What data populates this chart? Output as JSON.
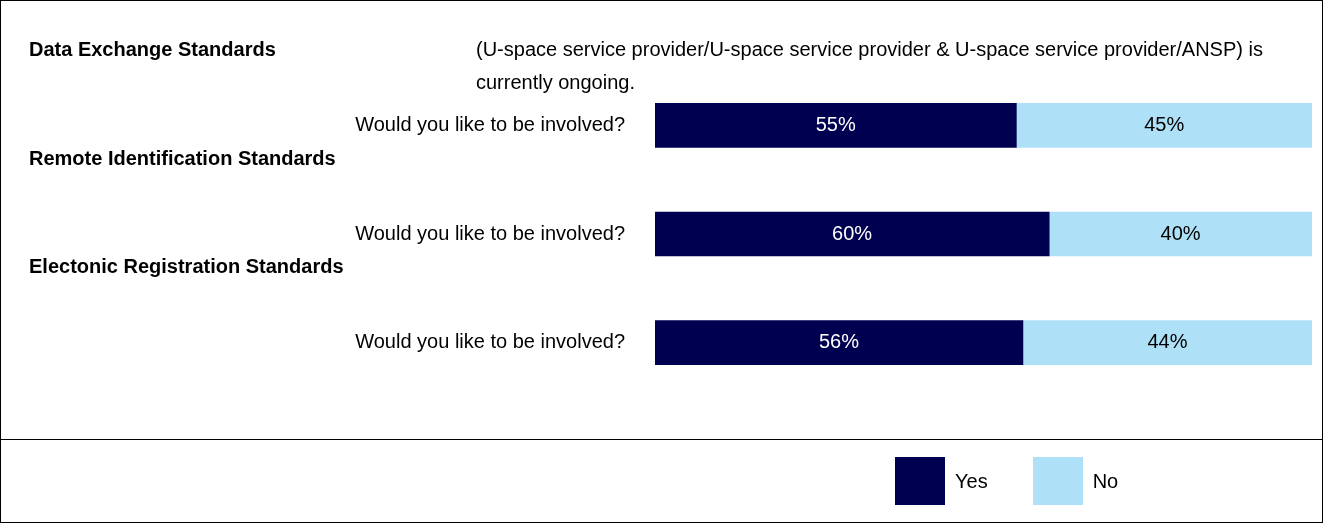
{
  "chart_data": {
    "type": "bar",
    "orientation": "horizontal",
    "stacked": true,
    "categories": [
      "Would you like to be involved?",
      "Would you like to be involved?",
      "Would you like to be involved?"
    ],
    "annotations": [
      "Data Exchange Standards",
      "Remote Identification Standards",
      "Electonic Registration Standards",
      "(U-space service provider/U-space service provider & U-space service provider/ANSP) is currently ongoing."
    ],
    "series": [
      {
        "name": "Yes",
        "color": "#000050",
        "values": [
          55,
          60,
          56
        ],
        "value_labels": [
          "55%",
          "60%",
          "56%"
        ]
      },
      {
        "name": "No",
        "color": "#aee0f7",
        "values": [
          45,
          40,
          44
        ],
        "value_labels": [
          "45%",
          "40%",
          "44%"
        ]
      }
    ],
    "xlim": [
      0,
      100
    ],
    "tick_labels": "y",
    "grid": false,
    "legend": "bottom"
  }
}
